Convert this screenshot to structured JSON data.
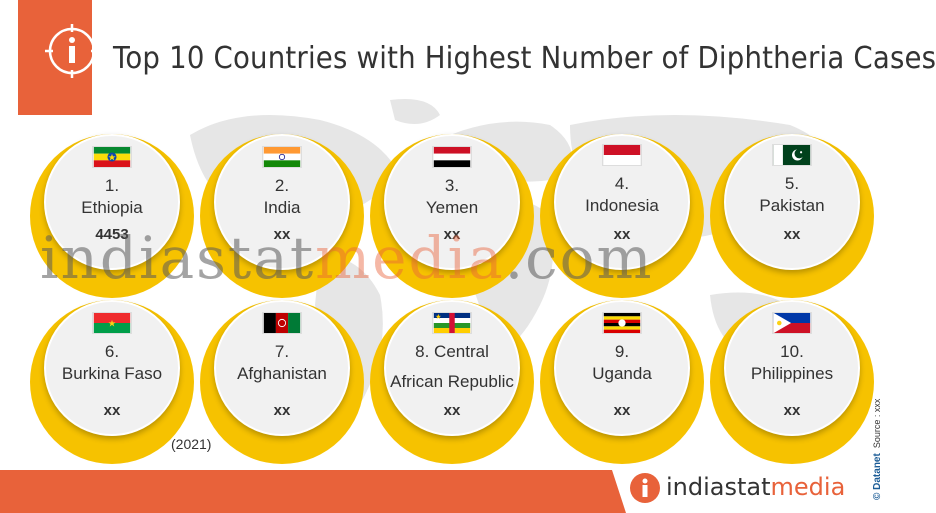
{
  "title": "Top 10 Countries with Highest Number of Diphtheria Cases",
  "year": "(2021)",
  "watermark": {
    "part1": "indiastat",
    "part2": "media",
    "part3": ".com"
  },
  "source": {
    "brand": "© Datanet",
    "label": "Source : xxx"
  },
  "logo": {
    "part1": "indiastat",
    "part2": "media"
  },
  "colors": {
    "accent": "#e8623a",
    "ring": "#f6c200",
    "text": "#333333"
  },
  "countries": [
    {
      "rank": "1.",
      "name": "Ethiopia",
      "value": "4453",
      "flag_icon": "ethiopia-flag-icon"
    },
    {
      "rank": "2.",
      "name": "India",
      "value": "xx",
      "flag_icon": "india-flag-icon"
    },
    {
      "rank": "3.",
      "name": "Yemen",
      "value": "xx",
      "flag_icon": "yemen-flag-icon"
    },
    {
      "rank": "4.",
      "name": "Indonesia",
      "value": "xx",
      "flag_icon": "indonesia-flag-icon"
    },
    {
      "rank": "5.",
      "name": "Pakistan",
      "value": "xx",
      "flag_icon": "pakistan-flag-icon"
    },
    {
      "rank": "6.",
      "name": "Burkina Faso",
      "value": "xx",
      "flag_icon": "burkina-faso-flag-icon"
    },
    {
      "rank": "7.",
      "name": "Afghanistan",
      "value": "xx",
      "flag_icon": "afghanistan-flag-icon"
    },
    {
      "rank": "8. Central",
      "name": "African Republic",
      "value": "xx",
      "flag_icon": "central-african-republic-flag-icon"
    },
    {
      "rank": "9.",
      "name": "Uganda",
      "value": "xx",
      "flag_icon": "uganda-flag-icon"
    },
    {
      "rank": "10.",
      "name": "Philippines",
      "value": "xx",
      "flag_icon": "philippines-flag-icon"
    }
  ]
}
